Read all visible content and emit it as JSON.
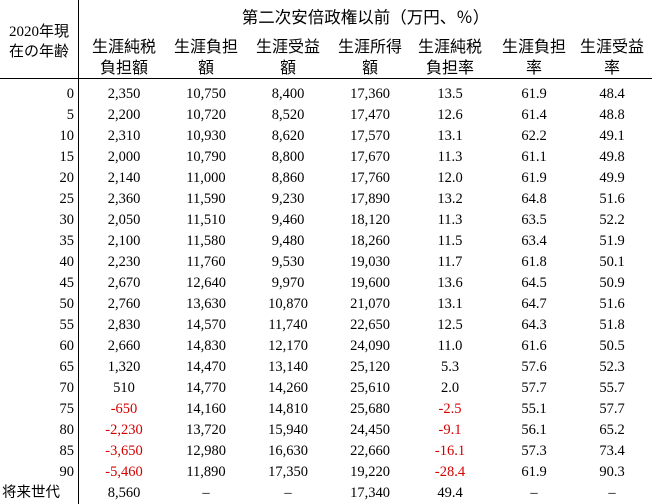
{
  "table": {
    "title": "第二次安倍政権以前（万円、％）",
    "row_header": [
      "2020年現",
      "在の年齢"
    ],
    "columns": [
      [
        "生涯純税",
        "負担額"
      ],
      [
        "生涯負担",
        "額"
      ],
      [
        "生涯受益",
        "額"
      ],
      [
        "生涯所得",
        "額"
      ],
      [
        "生涯純税",
        "負担率"
      ],
      [
        "生涯負担",
        "率"
      ],
      [
        "生涯受益",
        "率"
      ]
    ],
    "rows": [
      {
        "age": "0",
        "values": [
          "2,350",
          "10,750",
          "8,400",
          "17,360",
          "13.5",
          "61.9",
          "48.4"
        ]
      },
      {
        "age": "5",
        "values": [
          "2,200",
          "10,720",
          "8,520",
          "17,470",
          "12.6",
          "61.4",
          "48.8"
        ]
      },
      {
        "age": "10",
        "values": [
          "2,310",
          "10,930",
          "8,620",
          "17,570",
          "13.1",
          "62.2",
          "49.1"
        ]
      },
      {
        "age": "15",
        "values": [
          "2,000",
          "10,790",
          "8,800",
          "17,670",
          "11.3",
          "61.1",
          "49.8"
        ]
      },
      {
        "age": "20",
        "values": [
          "2,140",
          "11,000",
          "8,860",
          "17,760",
          "12.0",
          "61.9",
          "49.9"
        ]
      },
      {
        "age": "25",
        "values": [
          "2,360",
          "11,590",
          "9,230",
          "17,890",
          "13.2",
          "64.8",
          "51.6"
        ]
      },
      {
        "age": "30",
        "values": [
          "2,050",
          "11,510",
          "9,460",
          "18,120",
          "11.3",
          "63.5",
          "52.2"
        ]
      },
      {
        "age": "35",
        "values": [
          "2,100",
          "11,580",
          "9,480",
          "18,260",
          "11.5",
          "63.4",
          "51.9"
        ]
      },
      {
        "age": "40",
        "values": [
          "2,230",
          "11,760",
          "9,530",
          "19,030",
          "11.7",
          "61.8",
          "50.1"
        ]
      },
      {
        "age": "45",
        "values": [
          "2,670",
          "12,640",
          "9,970",
          "19,600",
          "13.6",
          "64.5",
          "50.9"
        ]
      },
      {
        "age": "50",
        "values": [
          "2,760",
          "13,630",
          "10,870",
          "21,070",
          "13.1",
          "64.7",
          "51.6"
        ]
      },
      {
        "age": "55",
        "values": [
          "2,830",
          "14,570",
          "11,740",
          "22,650",
          "12.5",
          "64.3",
          "51.8"
        ]
      },
      {
        "age": "60",
        "values": [
          "2,660",
          "14,830",
          "12,170",
          "24,090",
          "11.0",
          "61.6",
          "50.5"
        ]
      },
      {
        "age": "65",
        "values": [
          "1,320",
          "14,470",
          "13,140",
          "25,120",
          "5.3",
          "57.6",
          "52.3"
        ]
      },
      {
        "age": "70",
        "values": [
          "510",
          "14,770",
          "14,260",
          "25,610",
          "2.0",
          "57.7",
          "55.7"
        ]
      },
      {
        "age": "75",
        "values": [
          "-650",
          "14,160",
          "14,810",
          "25,680",
          "-2.5",
          "55.1",
          "57.7"
        ]
      },
      {
        "age": "80",
        "values": [
          "-2,230",
          "13,720",
          "15,940",
          "24,450",
          "-9.1",
          "56.1",
          "65.2"
        ]
      },
      {
        "age": "85",
        "values": [
          "-3,650",
          "12,980",
          "16,630",
          "22,660",
          "-16.1",
          "57.3",
          "73.4"
        ]
      },
      {
        "age": "90",
        "values": [
          "-5,460",
          "11,890",
          "17,350",
          "19,220",
          "-28.4",
          "61.9",
          "90.3"
        ]
      },
      {
        "age": "将来世代",
        "values": [
          "8,560",
          "–",
          "–",
          "17,340",
          "49.4",
          "–",
          "–"
        ]
      }
    ],
    "negative_color": "#d40000"
  }
}
